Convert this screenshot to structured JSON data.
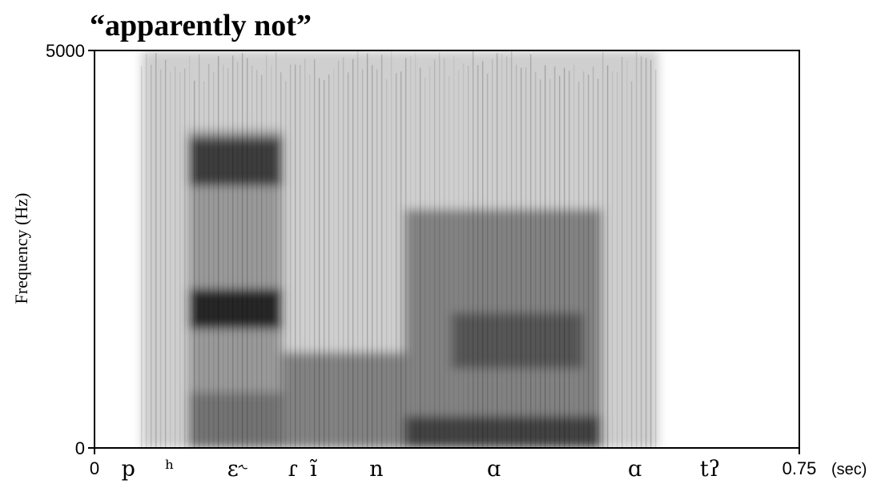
{
  "chart_data": {
    "type": "heatmap",
    "title": "“apparently not”",
    "ylabel": "Frequency (Hz)",
    "xlabel": "",
    "xlim": [
      0,
      0.75
    ],
    "ylim": [
      0,
      5000
    ],
    "x_unit": "(sec)",
    "x_ticks": [
      {
        "value": 0,
        "label": "0"
      },
      {
        "value": 0.75,
        "label": "0.75"
      }
    ],
    "y_ticks": [
      {
        "value": 0,
        "label": "0"
      },
      {
        "value": 5000,
        "label": "5000"
      }
    ],
    "grid": false,
    "colormap": "grayscale (darker = more energy)",
    "segments": [
      {
        "label": "p",
        "time": 0.036
      },
      {
        "label": "ʰ",
        "time": 0.08
      },
      {
        "label": "ɛ˞",
        "time": 0.152
      },
      {
        "label": "ɾ",
        "time": 0.211
      },
      {
        "label": "ĩ",
        "time": 0.233
      },
      {
        "label": "n",
        "time": 0.3
      },
      {
        "label": "ɑ",
        "time": 0.425
      },
      {
        "label": "ɑ",
        "time": 0.575
      },
      {
        "label": "tʔ",
        "time": 0.655
      }
    ],
    "energy_regions": [
      {
        "t": [
          0.05,
          0.6
        ],
        "f": [
          0,
          5000
        ],
        "level": 0.22
      },
      {
        "t": [
          0.1,
          0.2
        ],
        "f": [
          0,
          4000
        ],
        "level": 0.45
      },
      {
        "t": [
          0.1,
          0.2
        ],
        "f": [
          3300,
          3900
        ],
        "level": 0.85
      },
      {
        "t": [
          0.1,
          0.2
        ],
        "f": [
          1500,
          2000
        ],
        "level": 0.95
      },
      {
        "t": [
          0.1,
          0.2
        ],
        "f": [
          0,
          700
        ],
        "level": 0.6
      },
      {
        "t": [
          0.2,
          0.33
        ],
        "f": [
          0,
          1200
        ],
        "level": 0.55
      },
      {
        "t": [
          0.33,
          0.54
        ],
        "f": [
          0,
          400
        ],
        "level": 0.85
      },
      {
        "t": [
          0.33,
          0.54
        ],
        "f": [
          400,
          3000
        ],
        "level": 0.55
      },
      {
        "t": [
          0.38,
          0.52
        ],
        "f": [
          1000,
          1700
        ],
        "level": 0.72
      }
    ]
  }
}
